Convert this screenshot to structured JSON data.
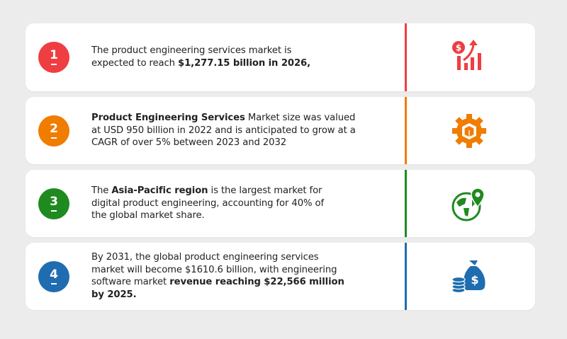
{
  "colors": {
    "red": "#ef3e42",
    "orange": "#f07c00",
    "green": "#1f8a1f",
    "blue": "#1f6db0"
  },
  "items": [
    {
      "number": "1",
      "text_a": "The product engineering services market is expected to reach ",
      "bold_a": "$1,277.15 billion in 2026,",
      "icon": "money-growth-chart-icon"
    },
    {
      "number": "2",
      "bold_a": "Product Engineering Services",
      "text_a": " Market size was valued at USD 950 billion in 2022 and is anticipated to grow at a CAGR of over 5% between 2023 and 2032",
      "icon": "gear-box-icon"
    },
    {
      "number": "3",
      "text_a": "The ",
      "bold_a": "Asia-Pacific region",
      "text_b": " is the largest market for digital product engineering, accounting for 40% of the global market share.",
      "icon": "globe-location-icon"
    },
    {
      "number": "4",
      "text_a": "By 2031, the global product engineering services market will become $1610.6 billion, with engineering software market ",
      "bold_a": "revenue reaching $22,566 million by 2025.",
      "icon": "money-bag-coins-icon"
    }
  ]
}
